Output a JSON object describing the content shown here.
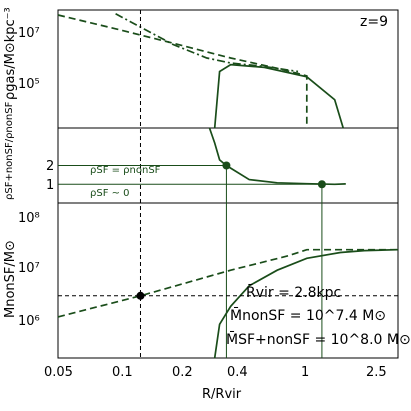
{
  "chart_data": [
    {
      "type": "line",
      "panel": "top",
      "ylabel": "ρgas/M⊙kpc⁻³",
      "yscale": "log",
      "ylim": [
        2000,
        30000000
      ],
      "xscale": "log",
      "xlim": [
        0.05,
        3.0
      ],
      "ytick_labels": [
        "10⁵",
        "10⁷"
      ],
      "annotation": "z=9",
      "series": [
        {
          "style": "dashed",
          "x": [
            0.05,
            0.1,
            0.2,
            0.4,
            0.7,
            0.9,
            1.0,
            1.0
          ],
          "y": [
            20000000,
            6500000,
            2000000,
            600000,
            260000,
            170000,
            140000,
            2000
          ]
        },
        {
          "style": "dash-dot",
          "x": [
            0.1,
            0.2,
            0.3,
            0.4,
            0.6,
            0.9
          ],
          "y": [
            22000000,
            1800000,
            600000,
            400000,
            300000,
            200000
          ]
        },
        {
          "style": "solid",
          "x": [
            0.33,
            0.35,
            0.4,
            0.6,
            1.0,
            1.4,
            1.55
          ],
          "y": [
            2000,
            200000,
            350000,
            280000,
            130000,
            20000,
            2000
          ]
        }
      ],
      "vline_x": 0.135
    },
    {
      "type": "line",
      "panel": "middle",
      "ylabel": "ρSF+nonSF/ρnonSF",
      "yscale": "linear",
      "ylim": [
        0,
        4
      ],
      "xscale": "log",
      "xlim": [
        0.05,
        3.0
      ],
      "ytick_labels": [
        "1",
        "2"
      ],
      "annotations": [
        "ρSF = ρnonSF",
        "ρSF ~ 0"
      ],
      "series": [
        {
          "style": "solid",
          "x": [
            0.31,
            0.33,
            0.35,
            0.38,
            0.5,
            0.7,
            1.0,
            1.4,
            1.6
          ],
          "y": [
            4.0,
            3.2,
            2.3,
            2.0,
            1.25,
            1.08,
            1.03,
            1.0,
            1.02
          ]
        }
      ],
      "points": [
        {
          "x": 0.38,
          "y": 2.0
        },
        {
          "x": 1.2,
          "y": 1.0
        }
      ]
    },
    {
      "type": "line",
      "panel": "bottom",
      "ylabel": "MnonSF/M⊙",
      "xlabel": "R/Rvir",
      "yscale": "log",
      "ylim": [
        200000,
        200000000
      ],
      "xscale": "log",
      "xlim": [
        0.05,
        3.0
      ],
      "xtick_labels": [
        "0.05",
        "0.1",
        "0.2",
        "0.4",
        "1",
        "2.5"
      ],
      "ytick_labels": [
        "10⁶",
        "10⁷",
        "10⁸"
      ],
      "annotations": [
        "R̄vir = 2.8kpc",
        "M̄nonSF = 10^7.4 M⊙",
        "M̄SF+nonSF = 10^8.0 M⊙"
      ],
      "series": [
        {
          "style": "dashed",
          "x": [
            0.05,
            0.135,
            0.4,
            0.8,
            1.0,
            3.0
          ],
          "y": [
            1250000,
            3200000,
            10000000,
            19000000,
            25000000,
            25000000
          ]
        },
        {
          "style": "solid",
          "x": [
            0.33,
            0.35,
            0.4,
            0.5,
            0.7,
            1.0,
            1.5,
            2.0,
            3.0
          ],
          "y": [
            200000,
            900000,
            2000000,
            5000000,
            10000000,
            17000000,
            22000000,
            24000000,
            25000000
          ]
        }
      ],
      "hline_y": 3200000,
      "points": [
        {
          "x": 0.135,
          "y": 3200000
        }
      ]
    }
  ]
}
